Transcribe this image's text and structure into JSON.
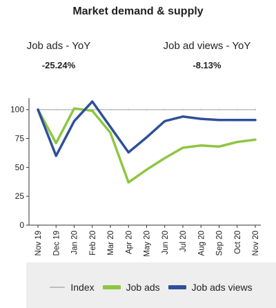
{
  "header": {
    "title": "Market demand & supply"
  },
  "kpis": [
    {
      "label": "Job ads - YoY",
      "value": "-25.24%"
    },
    {
      "label": "Job ad views - YoY",
      "value": "-8.13%"
    }
  ],
  "chart_data": {
    "type": "line",
    "categories": [
      "Nov 19",
      "Dec 19",
      "Jan 20",
      "Feb 20",
      "Mar 20",
      "Apr 20",
      "May 20",
      "Jun 20",
      "Jul 20",
      "Aug 20",
      "Sep 20",
      "Oct 20",
      "Nov 20"
    ],
    "yticks": [
      0,
      25,
      50,
      75,
      100
    ],
    "ylim": [
      0,
      110
    ],
    "grid": false,
    "legend_position": "bottom",
    "series": [
      {
        "name": "Index",
        "color": "#bdbdbd",
        "values": [
          100,
          100,
          100,
          100,
          100,
          100,
          100,
          100,
          100,
          100,
          100,
          100,
          100
        ]
      },
      {
        "name": "Job ads",
        "color": "#8dc63f",
        "values": [
          100,
          71,
          101,
          99,
          80,
          37,
          48,
          58,
          67,
          69,
          68,
          72,
          74
        ]
      },
      {
        "name": "Job ads views",
        "color": "#2f4f9a",
        "values": [
          100,
          60,
          90,
          107,
          85,
          63,
          76,
          90,
          94,
          92,
          91,
          91,
          91
        ]
      }
    ]
  },
  "legend": {
    "items": [
      "Index",
      "Job ads",
      "Job ads views"
    ]
  }
}
